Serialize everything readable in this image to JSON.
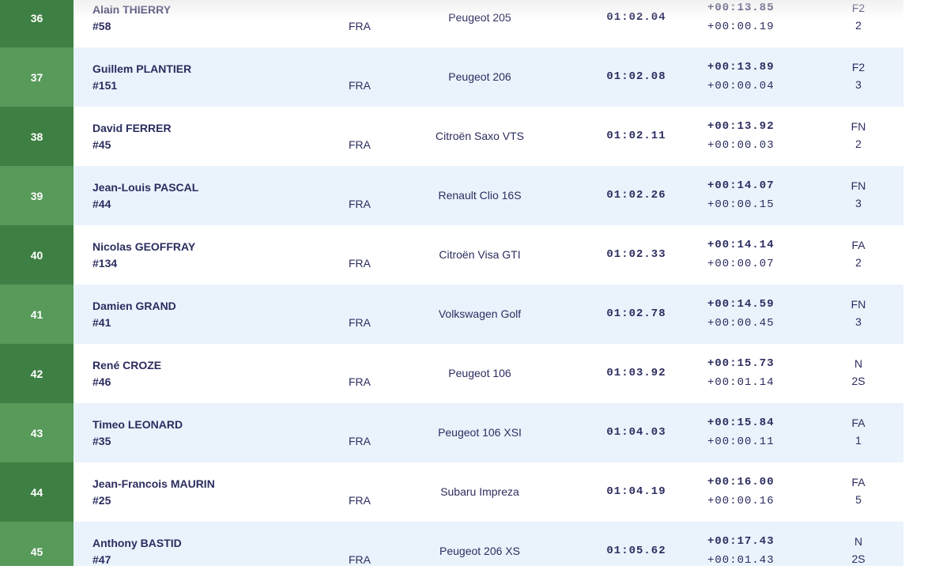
{
  "results": [
    {
      "pos": "36",
      "name": "Alain THIERRY",
      "number": "#58",
      "nat": "FRA",
      "car": "Peugeot 205",
      "time": "01:02.04",
      "gap_leader": "+00:13.85",
      "gap_prev": "+00:00.19",
      "class": "F2",
      "class_pos": "2"
    },
    {
      "pos": "37",
      "name": "Guillem PLANTIER",
      "number": "#151",
      "nat": "FRA",
      "car": "Peugeot 206",
      "time": "01:02.08",
      "gap_leader": "+00:13.89",
      "gap_prev": "+00:00.04",
      "class": "F2",
      "class_pos": "3"
    },
    {
      "pos": "38",
      "name": "David FERRER",
      "number": "#45",
      "nat": "FRA",
      "car": "Citroën Saxo VTS",
      "time": "01:02.11",
      "gap_leader": "+00:13.92",
      "gap_prev": "+00:00.03",
      "class": "FN",
      "class_pos": "2"
    },
    {
      "pos": "39",
      "name": "Jean-Louis PASCAL",
      "number": "#44",
      "nat": "FRA",
      "car": "Renault Clio 16S",
      "time": "01:02.26",
      "gap_leader": "+00:14.07",
      "gap_prev": "+00:00.15",
      "class": "FN",
      "class_pos": "3"
    },
    {
      "pos": "40",
      "name": "Nicolas GEOFFRAY",
      "number": "#134",
      "nat": "FRA",
      "car": "Citroën Visa GTI",
      "time": "01:02.33",
      "gap_leader": "+00:14.14",
      "gap_prev": "+00:00.07",
      "class": "FA",
      "class_pos": "2"
    },
    {
      "pos": "41",
      "name": "Damien GRAND",
      "number": "#41",
      "nat": "FRA",
      "car": "Volkswagen Golf",
      "time": "01:02.78",
      "gap_leader": "+00:14.59",
      "gap_prev": "+00:00.45",
      "class": "FN",
      "class_pos": "3"
    },
    {
      "pos": "42",
      "name": "René CROZE",
      "number": "#46",
      "nat": "FRA",
      "car": "Peugeot 106",
      "time": "01:03.92",
      "gap_leader": "+00:15.73",
      "gap_prev": "+00:01.14",
      "class": "N",
      "class_pos": "2S"
    },
    {
      "pos": "43",
      "name": "Timeo LEONARD",
      "number": "#35",
      "nat": "FRA",
      "car": "Peugeot 106 XSI",
      "time": "01:04.03",
      "gap_leader": "+00:15.84",
      "gap_prev": "+00:00.11",
      "class": "FA",
      "class_pos": "1"
    },
    {
      "pos": "44",
      "name": "Jean-Francois MAURIN",
      "number": "#25",
      "nat": "FRA",
      "car": "Subaru Impreza",
      "time": "01:04.19",
      "gap_leader": "+00:16.00",
      "gap_prev": "+00:00.16",
      "class": "FA",
      "class_pos": "5"
    },
    {
      "pos": "45",
      "name": "Anthony BASTID",
      "number": "#47",
      "nat": "FRA",
      "car": "Peugeot 206 XS",
      "time": "01:05.62",
      "gap_leader": "+00:17.43",
      "gap_prev": "+00:01.43",
      "class": "N",
      "class_pos": "2S"
    }
  ]
}
